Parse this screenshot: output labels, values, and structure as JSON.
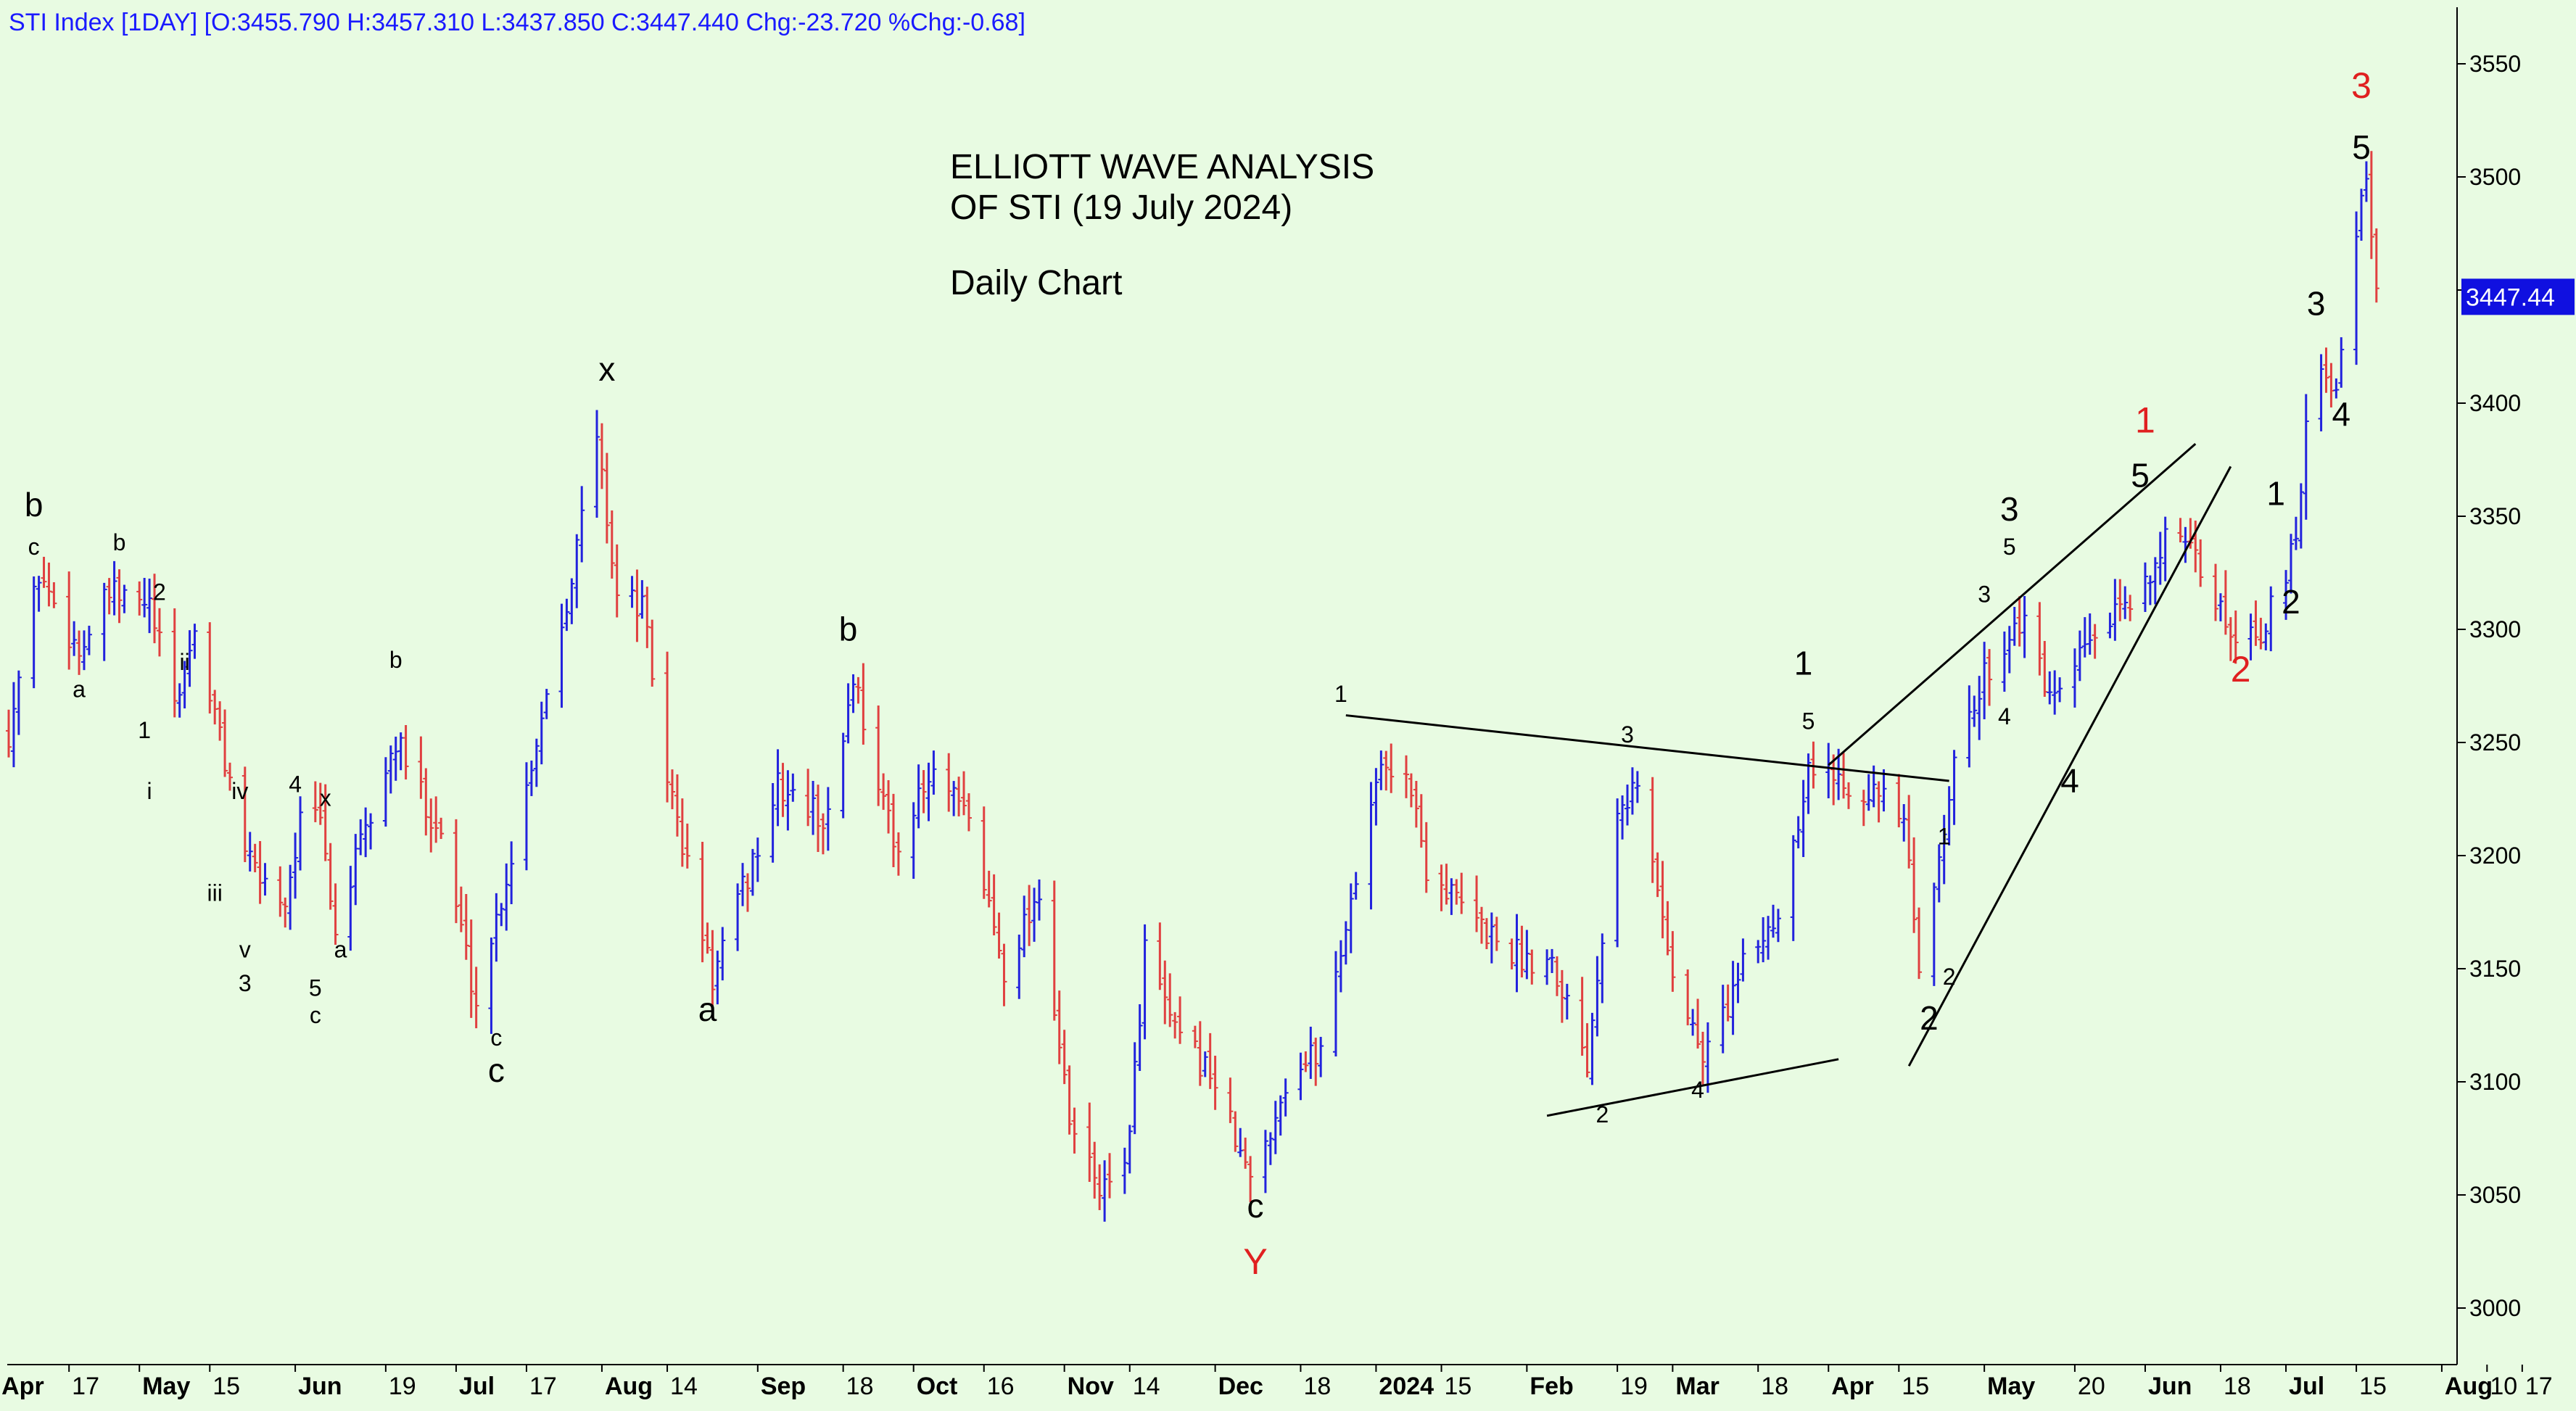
{
  "header": {
    "text": "STI Index [1DAY] [O:3455.790 H:3457.310 L:3437.850 C:3447.440 Chg:-23.720 %Chg:-0.68]"
  },
  "title_lines": [
    "ELLIOTT WAVE ANALYSIS",
    "OF STI (19 July 2024)",
    "Daily Chart"
  ],
  "price_tag": "3447.44",
  "colors": {
    "background": "#e8fbe2",
    "up_bar": "#2222dd",
    "down_bar": "#e04040",
    "label_black": "#000000",
    "label_red": "#e02020",
    "price_tag": "#1010e0"
  },
  "chart_data": {
    "type": "ohlc",
    "ylim": [
      2975,
      3575
    ],
    "x_range": [
      "2023-04-05",
      "2024-07-31"
    ],
    "y_ticks": [
      3000,
      3050,
      3100,
      3150,
      3200,
      3250,
      3300,
      3350,
      3400,
      3450,
      3500,
      3550
    ],
    "y_tick_labels": [
      "3000",
      "3050",
      "3100",
      "3150",
      "3200",
      "3250",
      "3300",
      "3350",
      "3400",
      "3450",
      "3500",
      "3550"
    ],
    "x_ticks": [
      {
        "date": "2023-04-03",
        "label": "Apr",
        "bold": true
      },
      {
        "date": "2023-04-17",
        "label": "17",
        "bold": false
      },
      {
        "date": "2023-05-01",
        "label": "May",
        "bold": true
      },
      {
        "date": "2023-05-15",
        "label": "15",
        "bold": false
      },
      {
        "date": "2023-06-01",
        "label": "Jun",
        "bold": true
      },
      {
        "date": "2023-06-19",
        "label": "19",
        "bold": false
      },
      {
        "date": "2023-07-03",
        "label": "Jul",
        "bold": true
      },
      {
        "date": "2023-07-17",
        "label": "17",
        "bold": false
      },
      {
        "date": "2023-08-01",
        "label": "Aug",
        "bold": true
      },
      {
        "date": "2023-08-14",
        "label": "14",
        "bold": false
      },
      {
        "date": "2023-09-01",
        "label": "Sep",
        "bold": true
      },
      {
        "date": "2023-09-18",
        "label": "18",
        "bold": false
      },
      {
        "date": "2023-10-02",
        "label": "Oct",
        "bold": true
      },
      {
        "date": "2023-10-16",
        "label": "16",
        "bold": false
      },
      {
        "date": "2023-11-01",
        "label": "Nov",
        "bold": true
      },
      {
        "date": "2023-11-14",
        "label": "14",
        "bold": false
      },
      {
        "date": "2023-12-01",
        "label": "Dec",
        "bold": true
      },
      {
        "date": "2023-12-18",
        "label": "18",
        "bold": false
      },
      {
        "date": "2024-01-02",
        "label": "2024",
        "bold": true
      },
      {
        "date": "2024-01-15",
        "label": "15",
        "bold": false
      },
      {
        "date": "2024-02-01",
        "label": "Feb",
        "bold": true
      },
      {
        "date": "2024-02-19",
        "label": "19",
        "bold": false
      },
      {
        "date": "2024-03-01",
        "label": "Mar",
        "bold": true
      },
      {
        "date": "2024-03-18",
        "label": "18",
        "bold": false
      },
      {
        "date": "2024-04-01",
        "label": "Apr",
        "bold": true
      },
      {
        "date": "2024-04-15",
        "label": "15",
        "bold": false
      },
      {
        "date": "2024-05-02",
        "label": "May",
        "bold": true
      },
      {
        "date": "2024-05-20",
        "label": "20",
        "bold": false
      },
      {
        "date": "2024-06-03",
        "label": "Jun",
        "bold": true
      },
      {
        "date": "2024-06-18",
        "label": "18",
        "bold": false
      },
      {
        "date": "2024-07-01",
        "label": "Jul",
        "bold": true
      },
      {
        "date": "2024-07-15",
        "label": "15",
        "bold": false
      },
      {
        "date": "2024-08-01",
        "label": "Aug",
        "bold": true
      },
      {
        "date": "2024-08-10",
        "label": "10",
        "bold": false
      },
      {
        "date": "2024-08-17",
        "label": "17",
        "bold": false
      }
    ],
    "price_anchors": [
      [
        "2023-04-05",
        3255
      ],
      [
        "2023-04-11",
        3325
      ],
      [
        "2023-04-19",
        3290
      ],
      [
        "2023-04-25",
        3315
      ],
      [
        "2023-05-03",
        3310
      ],
      [
        "2023-05-08",
        3265
      ],
      [
        "2023-05-12",
        3300
      ],
      [
        "2023-05-23",
        3195
      ],
      [
        "2023-05-30",
        3180
      ],
      [
        "2023-06-02",
        3215
      ],
      [
        "2023-06-06",
        3215
      ],
      [
        "2023-06-09",
        3165
      ],
      [
        "2023-06-12",
        3190
      ],
      [
        "2023-06-21",
        3250
      ],
      [
        "2023-06-30",
        3210
      ],
      [
        "2023-07-07",
        3135
      ],
      [
        "2023-07-14",
        3200
      ],
      [
        "2023-07-26",
        3325
      ],
      [
        "2023-07-31",
        3385
      ],
      [
        "2023-08-04",
        3315
      ],
      [
        "2023-08-09",
        3310
      ],
      [
        "2023-08-14",
        3235
      ],
      [
        "2023-08-23",
        3145
      ],
      [
        "2023-09-05",
        3230
      ],
      [
        "2023-09-15",
        3215
      ],
      [
        "2023-09-20",
        3280
      ],
      [
        "2023-09-28",
        3205
      ],
      [
        "2023-10-06",
        3235
      ],
      [
        "2023-10-13",
        3215
      ],
      [
        "2023-10-20",
        3150
      ],
      [
        "2023-10-27",
        3185
      ],
      [
        "2023-11-02",
        3080
      ],
      [
        "2023-11-09",
        3050
      ],
      [
        "2023-11-14",
        3075
      ],
      [
        "2023-11-17",
        3160
      ],
      [
        "2023-11-23",
        3120
      ],
      [
        "2023-11-30",
        3105
      ],
      [
        "2023-12-08",
        3055
      ],
      [
        "2023-12-15",
        3100
      ],
      [
        "2023-12-22",
        3115
      ],
      [
        "2024-01-02",
        3235
      ],
      [
        "2024-01-08",
        3240
      ],
      [
        "2024-01-12",
        3195
      ],
      [
        "2024-01-22",
        3170
      ],
      [
        "2024-01-31",
        3155
      ],
      [
        "2024-02-06",
        3155
      ],
      [
        "2024-02-13",
        3110
      ],
      [
        "2024-02-19",
        3225
      ],
      [
        "2024-02-23",
        3230
      ],
      [
        "2024-03-01",
        3150
      ],
      [
        "2024-03-07",
        3110
      ],
      [
        "2024-03-15",
        3150
      ],
      [
        "2024-03-22",
        3175
      ],
      [
        "2024-03-28",
        3240
      ],
      [
        "2024-04-02",
        3235
      ],
      [
        "2024-04-09",
        3230
      ],
      [
        "2024-04-16",
        3215
      ],
      [
        "2024-04-19",
        3145
      ],
      [
        "2024-04-25",
        3230
      ],
      [
        "2024-05-02",
        3280
      ],
      [
        "2024-05-09",
        3305
      ],
      [
        "2024-05-16",
        3265
      ],
      [
        "2024-05-23",
        3295
      ],
      [
        "2024-05-31",
        3310
      ],
      [
        "2024-06-07",
        3340
      ],
      [
        "2024-06-13",
        3330
      ],
      [
        "2024-06-20",
        3300
      ],
      [
        "2024-06-26",
        3300
      ],
      [
        "2024-07-01",
        3320
      ],
      [
        "2024-07-04",
        3360
      ],
      [
        "2024-07-05",
        3395
      ],
      [
        "2024-07-08",
        3420
      ],
      [
        "2024-07-11",
        3405
      ],
      [
        "2024-07-15",
        3480
      ],
      [
        "2024-07-17",
        3495
      ],
      [
        "2024-07-18",
        3470
      ],
      [
        "2024-07-19",
        3447
      ]
    ],
    "trendlines": [
      {
        "from": [
          "2023-12-27",
          3262
        ],
        "to": [
          "2024-04-25",
          3233
        ]
      },
      {
        "from": [
          "2024-02-05",
          3085
        ],
        "to": [
          "2024-04-03",
          3110
        ]
      },
      {
        "from": [
          "2024-04-01",
          3240
        ],
        "to": [
          "2024-06-13",
          3382
        ]
      },
      {
        "from": [
          "2024-04-17",
          3107
        ],
        "to": [
          "2024-06-20",
          3372
        ]
      }
    ],
    "annotations": [
      {
        "date": "2023-04-10",
        "price": 3350,
        "text": "b",
        "size": 46,
        "color": "black"
      },
      {
        "date": "2023-04-10",
        "price": 3333,
        "text": "c",
        "size": 32,
        "color": "black"
      },
      {
        "date": "2023-04-19",
        "price": 3270,
        "text": "a",
        "size": 32,
        "color": "black"
      },
      {
        "date": "2023-04-27",
        "price": 3335,
        "text": "b",
        "size": 32,
        "color": "black"
      },
      {
        "date": "2023-05-05",
        "price": 3313,
        "text": "2",
        "size": 32,
        "color": "black"
      },
      {
        "date": "2023-05-10",
        "price": 3282,
        "text": "ii",
        "size": 32,
        "color": "black"
      },
      {
        "date": "2023-05-02",
        "price": 3252,
        "text": "1",
        "size": 32,
        "color": "black"
      },
      {
        "date": "2023-05-03",
        "price": 3225,
        "text": "i",
        "size": 32,
        "color": "black"
      },
      {
        "date": "2023-05-21",
        "price": 3225,
        "text": "iv",
        "size": 32,
        "color": "black"
      },
      {
        "date": "2023-05-16",
        "price": 3180,
        "text": "iii",
        "size": 32,
        "color": "black"
      },
      {
        "date": "2023-05-22",
        "price": 3155,
        "text": "v",
        "size": 32,
        "color": "black"
      },
      {
        "date": "2023-05-22",
        "price": 3140,
        "text": "3",
        "size": 32,
        "color": "black"
      },
      {
        "date": "2023-06-01",
        "price": 3228,
        "text": "4",
        "size": 32,
        "color": "black"
      },
      {
        "date": "2023-06-07",
        "price": 3222,
        "text": "x",
        "size": 32,
        "color": "black"
      },
      {
        "date": "2023-06-05",
        "price": 3138,
        "text": "5",
        "size": 32,
        "color": "black"
      },
      {
        "date": "2023-06-05",
        "price": 3126,
        "text": "c",
        "size": 32,
        "color": "black"
      },
      {
        "date": "2023-06-10",
        "price": 3155,
        "text": "a",
        "size": 32,
        "color": "black"
      },
      {
        "date": "2023-06-21",
        "price": 3283,
        "text": "b",
        "size": 32,
        "color": "black"
      },
      {
        "date": "2023-07-11",
        "price": 3116,
        "text": "c",
        "size": 32,
        "color": "black"
      },
      {
        "date": "2023-07-11",
        "price": 3100,
        "text": "c",
        "size": 46,
        "color": "black"
      },
      {
        "date": "2023-08-02",
        "price": 3410,
        "text": "x",
        "size": 46,
        "color": "black"
      },
      {
        "date": "2023-08-22",
        "price": 3127,
        "text": "a",
        "size": 46,
        "color": "black"
      },
      {
        "date": "2023-09-19",
        "price": 3295,
        "text": "b",
        "size": 46,
        "color": "black"
      },
      {
        "date": "2023-12-09",
        "price": 3040,
        "text": "c",
        "size": 46,
        "color": "black"
      },
      {
        "date": "2023-12-09",
        "price": 3015,
        "text": "Y",
        "size": 50,
        "color": "red"
      },
      {
        "date": "2023-12-26",
        "price": 3268,
        "text": "1",
        "size": 32,
        "color": "black"
      },
      {
        "date": "2024-02-21",
        "price": 3250,
        "text": "3",
        "size": 32,
        "color": "black"
      },
      {
        "date": "2024-02-16",
        "price": 3082,
        "text": "2",
        "size": 32,
        "color": "black"
      },
      {
        "date": "2024-03-06",
        "price": 3093,
        "text": "4",
        "size": 32,
        "color": "black"
      },
      {
        "date": "2024-03-27",
        "price": 3280,
        "text": "1",
        "size": 46,
        "color": "black"
      },
      {
        "date": "2024-03-28",
        "price": 3256,
        "text": "5",
        "size": 32,
        "color": "black"
      },
      {
        "date": "2024-04-24",
        "price": 3205,
        "text": "1",
        "size": 32,
        "color": "black"
      },
      {
        "date": "2024-04-25",
        "price": 3143,
        "text": "2",
        "size": 32,
        "color": "black"
      },
      {
        "date": "2024-04-21",
        "price": 3123,
        "text": "2",
        "size": 46,
        "color": "black"
      },
      {
        "date": "2024-05-02",
        "price": 3312,
        "text": "3",
        "size": 32,
        "color": "black"
      },
      {
        "date": "2024-05-06",
        "price": 3258,
        "text": "4",
        "size": 32,
        "color": "black"
      },
      {
        "date": "2024-05-07",
        "price": 3348,
        "text": "3",
        "size": 46,
        "color": "black"
      },
      {
        "date": "2024-05-07",
        "price": 3333,
        "text": "5",
        "size": 32,
        "color": "black"
      },
      {
        "date": "2024-05-19",
        "price": 3228,
        "text": "4",
        "size": 46,
        "color": "black"
      },
      {
        "date": "2024-06-03",
        "price": 3387,
        "text": "1",
        "size": 50,
        "color": "red"
      },
      {
        "date": "2024-06-02",
        "price": 3363,
        "text": "5",
        "size": 46,
        "color": "black"
      },
      {
        "date": "2024-06-22",
        "price": 3277,
        "text": "2",
        "size": 50,
        "color": "red"
      },
      {
        "date": "2024-06-29",
        "price": 3355,
        "text": "1",
        "size": 46,
        "color": "black"
      },
      {
        "date": "2024-07-02",
        "price": 3307,
        "text": "2",
        "size": 46,
        "color": "black"
      },
      {
        "date": "2024-07-07",
        "price": 3439,
        "text": "3",
        "size": 46,
        "color": "black"
      },
      {
        "date": "2024-07-12",
        "price": 3390,
        "text": "4",
        "size": 46,
        "color": "black"
      },
      {
        "date": "2024-07-16",
        "price": 3535,
        "text": "3",
        "size": 50,
        "color": "red"
      },
      {
        "date": "2024-07-16",
        "price": 3508,
        "text": "5",
        "size": 46,
        "color": "black"
      }
    ]
  }
}
